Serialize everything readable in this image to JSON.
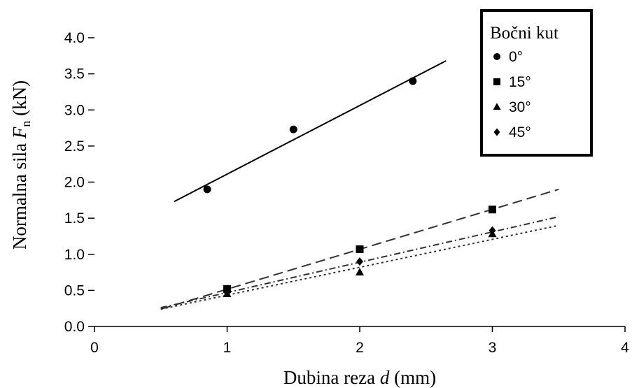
{
  "chart_data": {
    "type": "scatter",
    "xlabel_main": "Dubina reza ",
    "xlabel_var": "d",
    "xlabel_unit": " (mm)",
    "ylabel_main": "Normalna sila ",
    "ylabel_var": "F",
    "ylabel_sub": "n",
    "ylabel_unit": " (kN)",
    "xlim": [
      0,
      4
    ],
    "ylim": [
      0,
      4.0
    ],
    "x_ticks": [
      "0",
      "1",
      "2",
      "3",
      "4"
    ],
    "y_ticks": [
      "0.0",
      "0.5",
      "1.0",
      "1.5",
      "2.0",
      "2.5",
      "3.0",
      "3.5",
      "4.0"
    ],
    "grid": false,
    "legend": {
      "title": "Bočni kut",
      "placement": "top-right"
    },
    "series": [
      {
        "name": "0°",
        "marker": "circle",
        "line_style": "solid",
        "points": [
          [
            0.85,
            1.9
          ],
          [
            1.5,
            2.73
          ],
          [
            2.4,
            3.4
          ]
        ],
        "fit": [
          [
            0.6,
            1.73
          ],
          [
            2.65,
            3.68
          ]
        ]
      },
      {
        "name": "15°",
        "marker": "square",
        "line_style": "long-dash",
        "points": [
          [
            1.0,
            0.52
          ],
          [
            2.0,
            1.07
          ],
          [
            3.0,
            1.62
          ]
        ],
        "fit": [
          [
            0.5,
            0.24
          ],
          [
            3.5,
            1.9
          ]
        ]
      },
      {
        "name": "30°",
        "marker": "triangle",
        "line_style": "dotted",
        "points": [
          [
            1.0,
            0.45
          ],
          [
            2.0,
            0.75
          ],
          [
            3.0,
            1.28
          ]
        ],
        "fit": [
          [
            0.5,
            0.24
          ],
          [
            3.5,
            1.4
          ]
        ]
      },
      {
        "name": "45°",
        "marker": "diamond",
        "line_style": "dash-dot",
        "points": [
          [
            1.0,
            0.47
          ],
          [
            2.0,
            0.9
          ],
          [
            3.0,
            1.33
          ]
        ],
        "fit": [
          [
            0.5,
            0.26
          ],
          [
            3.5,
            1.52
          ]
        ]
      }
    ]
  }
}
